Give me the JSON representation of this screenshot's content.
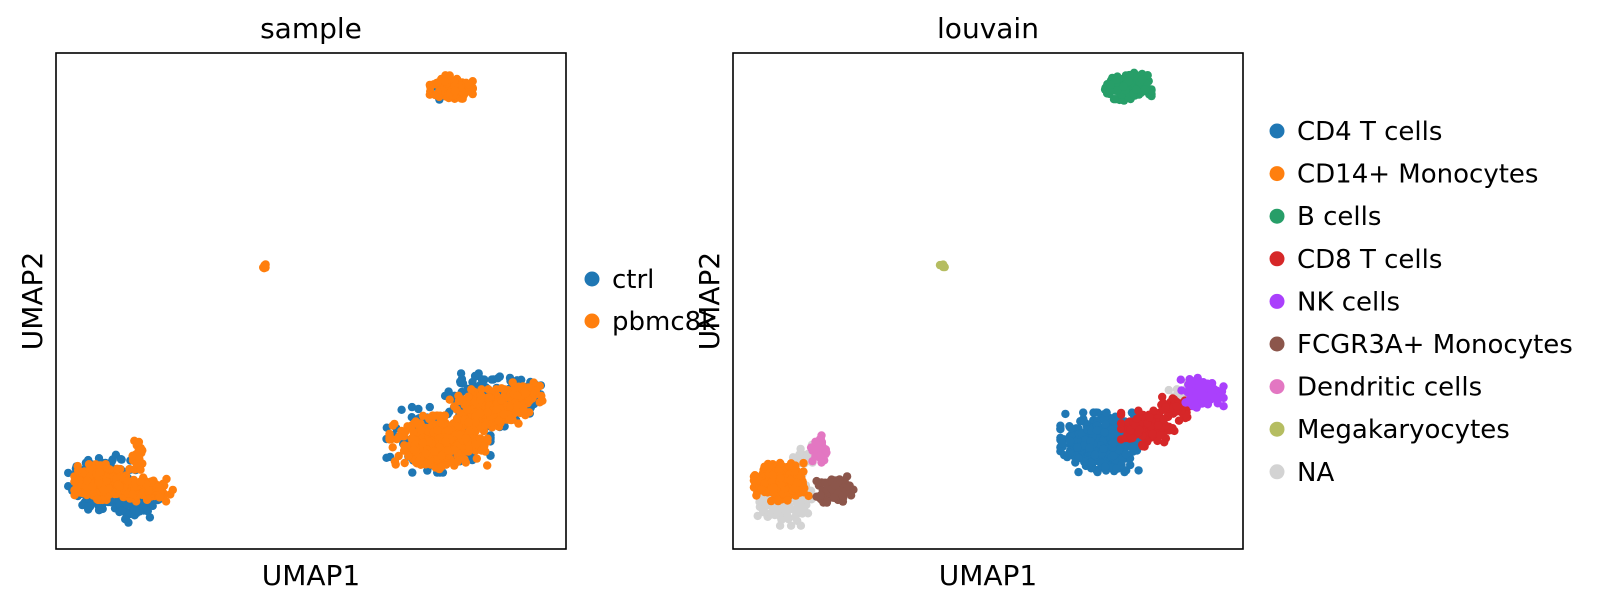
{
  "chart_data": [
    {
      "type": "scatter",
      "title": "sample",
      "xlabel": "UMAP1",
      "ylabel": "UMAP2",
      "xlim": [
        0,
        10
      ],
      "ylim": [
        0,
        10
      ],
      "grid": false,
      "legend_placement": "right",
      "series": [
        {
          "name": "ctrl",
          "color": "#1f77b4",
          "clusters": [
            {
              "cx": 0.9,
              "cy": 1.3,
              "rx": 0.55,
              "ry": 0.5,
              "n": 240
            },
            {
              "cx": 1.6,
              "cy": 0.95,
              "rx": 0.35,
              "ry": 0.35,
              "n": 80
            },
            {
              "cx": 7.5,
              "cy": 2.2,
              "rx": 0.85,
              "ry": 0.55,
              "n": 200
            },
            {
              "cx": 8.5,
              "cy": 3.0,
              "rx": 0.75,
              "ry": 0.45,
              "n": 140
            },
            {
              "cx": 9.1,
              "cy": 3.15,
              "rx": 0.4,
              "ry": 0.25,
              "n": 60
            },
            {
              "cx": 7.8,
              "cy": 9.3,
              "rx": 0.35,
              "ry": 0.2,
              "n": 20
            }
          ]
        },
        {
          "name": "pbmc8k",
          "color": "#ff7f0e",
          "clusters": [
            {
              "cx": 0.9,
              "cy": 1.35,
              "rx": 0.45,
              "ry": 0.3,
              "n": 280
            },
            {
              "cx": 1.75,
              "cy": 1.2,
              "rx": 0.45,
              "ry": 0.2,
              "n": 120
            },
            {
              "cx": 1.6,
              "cy": 1.9,
              "rx": 0.12,
              "ry": 0.3,
              "n": 30
            },
            {
              "cx": 7.5,
              "cy": 2.15,
              "rx": 0.8,
              "ry": 0.45,
              "n": 420
            },
            {
              "cx": 8.5,
              "cy": 2.8,
              "rx": 0.65,
              "ry": 0.35,
              "n": 200
            },
            {
              "cx": 9.15,
              "cy": 3.1,
              "rx": 0.35,
              "ry": 0.22,
              "n": 80
            },
            {
              "cx": 7.75,
              "cy": 9.3,
              "rx": 0.35,
              "ry": 0.22,
              "n": 180
            },
            {
              "cx": 4.1,
              "cy": 5.7,
              "rx": 0.05,
              "ry": 0.05,
              "n": 6
            }
          ]
        }
      ]
    },
    {
      "type": "scatter",
      "title": "louvain",
      "xlabel": "UMAP1",
      "ylabel": "UMAP2",
      "xlim": [
        0,
        10
      ],
      "ylim": [
        0,
        10
      ],
      "grid": false,
      "legend_placement": "right",
      "series": [
        {
          "name": "NA",
          "color": "#d3d3d3",
          "clusters": [
            {
              "cx": 1.0,
              "cy": 0.95,
              "rx": 0.45,
              "ry": 0.4,
              "n": 160
            },
            {
              "cx": 8.95,
              "cy": 3.15,
              "rx": 0.35,
              "ry": 0.18,
              "n": 40
            },
            {
              "cx": 1.4,
              "cy": 1.8,
              "rx": 0.2,
              "ry": 0.25,
              "n": 30
            }
          ]
        },
        {
          "name": "CD4 T cells",
          "color": "#1f77b4",
          "clusters": [
            {
              "cx": 7.2,
              "cy": 2.15,
              "rx": 0.65,
              "ry": 0.5,
              "n": 480
            }
          ]
        },
        {
          "name": "CD14+ Monocytes",
          "color": "#ff7f0e",
          "clusters": [
            {
              "cx": 0.95,
              "cy": 1.35,
              "rx": 0.45,
              "ry": 0.32,
              "n": 320
            }
          ]
        },
        {
          "name": "B cells",
          "color": "#279e68",
          "clusters": [
            {
              "cx": 7.75,
              "cy": 9.3,
              "rx": 0.38,
              "ry": 0.25,
              "n": 220
            }
          ]
        },
        {
          "name": "CD8 T cells",
          "color": "#d62728",
          "clusters": [
            {
              "cx": 8.15,
              "cy": 2.45,
              "rx": 0.45,
              "ry": 0.32,
              "n": 140
            },
            {
              "cx": 8.7,
              "cy": 2.85,
              "rx": 0.3,
              "ry": 0.22,
              "n": 70
            }
          ]
        },
        {
          "name": "NK cells",
          "color": "#aa40fc",
          "clusters": [
            {
              "cx": 9.2,
              "cy": 3.15,
              "rx": 0.35,
              "ry": 0.25,
              "n": 140
            }
          ]
        },
        {
          "name": "FCGR3A+ Monocytes",
          "color": "#8c564b",
          "clusters": [
            {
              "cx": 2.0,
              "cy": 1.2,
              "rx": 0.3,
              "ry": 0.22,
              "n": 110
            }
          ]
        },
        {
          "name": "Dendritic cells",
          "color": "#e377c2",
          "clusters": [
            {
              "cx": 1.7,
              "cy": 2.0,
              "rx": 0.14,
              "ry": 0.28,
              "n": 40
            }
          ]
        },
        {
          "name": "Megakaryocytes",
          "color": "#b5bd61",
          "clusters": [
            {
              "cx": 4.1,
              "cy": 5.7,
              "rx": 0.05,
              "ry": 0.05,
              "n": 6
            }
          ]
        }
      ],
      "legend_order": [
        "CD4 T cells",
        "CD14+ Monocytes",
        "B cells",
        "CD8 T cells",
        "NK cells",
        "FCGR3A+ Monocytes",
        "Dendritic cells",
        "Megakaryocytes",
        "NA"
      ]
    }
  ]
}
